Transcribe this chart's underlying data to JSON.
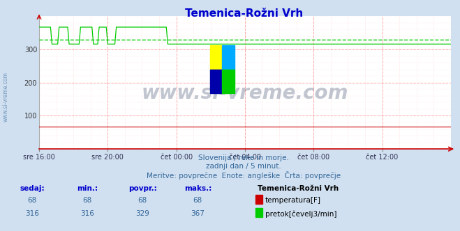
{
  "title": "Temenica-Rožni Vrh",
  "title_color": "#0000cc",
  "bg_color": "#d0e0f0",
  "plot_bg_color": "#ffffff",
  "grid_color_major": "#ffaaaa",
  "grid_color_minor": "#ffe8e8",
  "text_color": "#336699",
  "bold_text_color": "#0000cc",
  "ylabel_range": [
    0,
    400
  ],
  "yticks": [
    100,
    200,
    300
  ],
  "xtick_labels": [
    "sre 16:00",
    "sre 20:00",
    "čet 00:00",
    "čet 04:00",
    "čet 08:00",
    "čet 12:00"
  ],
  "n_points": 289,
  "temp_value": 68,
  "temp_color": "#cc0000",
  "flow_color": "#00cc00",
  "flow_avg": 329,
  "flow_baseline": 316,
  "flow_spike": 367,
  "watermark": "www.si-vreme.com",
  "watermark_color": "#334466",
  "watermark_alpha": 0.3,
  "subtitle1": "Slovenija / reke in morje.",
  "subtitle2": "zadnji dan / 5 minut.",
  "subtitle3": "Meritve: povprečne  Enote: angleške  Črta: povprečje",
  "legend_title": "Temenica-Rožni Vrh",
  "legend_temp_label": "temperatura[F]",
  "legend_flow_label": "pretok[čevelj3/min]",
  "table_headers": [
    "sedaj:",
    "min.:",
    "povpr.:",
    "maks.:"
  ],
  "table_temp": [
    68,
    68,
    68,
    68
  ],
  "table_flow": [
    316,
    316,
    329,
    367
  ],
  "arrow_color": "#cc0000",
  "left_label": "www.si-vreme.com",
  "logo_yellow": "#ffff00",
  "logo_cyan": "#00aaff",
  "logo_blue": "#0000aa",
  "logo_green": "#00cc00"
}
